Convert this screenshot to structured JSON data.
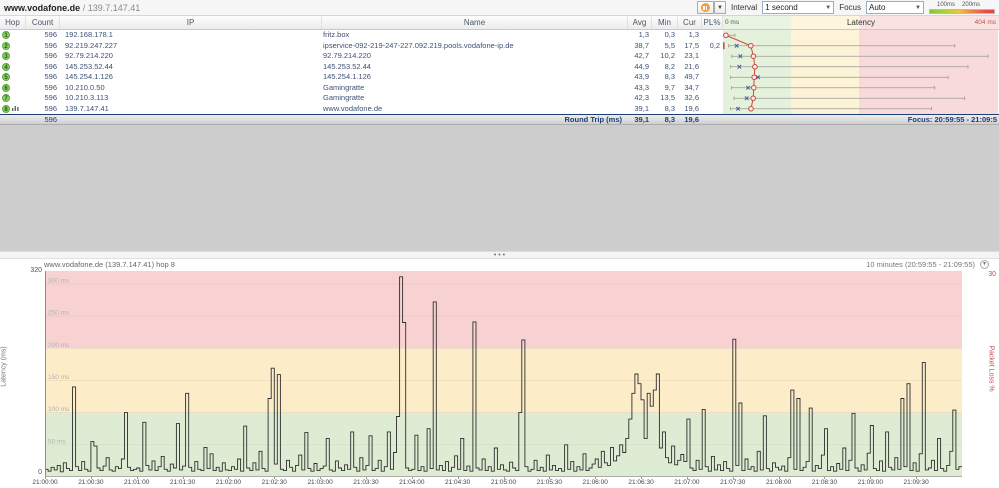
{
  "colors": {
    "pauseOrange": "#f0a03a",
    "zgreen": "#e4f1db",
    "zyellow": "#fdf3d6",
    "zred": "#f9dada",
    "zgreenT": "#eaf4e3",
    "zyellowT": "#fdf5de",
    "zredT": "#f9e2e2",
    "cgreen": "#ddecd2",
    "cyellow": "#fcecc8",
    "cred": "#f8d2d2",
    "hopBg": "#8bcf68",
    "hopBorder": "#5fa83c",
    "plRed": "#c0504d",
    "whisker": "#9a9a9a",
    "avgMarker": "#cb4a3d",
    "curMarker": "#3c55a5",
    "seriesLine": "#2f2f2f"
  },
  "toolbar": {
    "target_host": "www.vodafone.de",
    "target_sep": " / ",
    "target_ip": "139.7.147.41",
    "interval_label": "Interval",
    "interval_value": "1 second",
    "focus_label": "Focus",
    "focus_value": "Auto",
    "scale_label_1": "100ms",
    "scale_label_2": "200ms"
  },
  "trace": {
    "columns": {
      "hop": "Hop",
      "count": "Count",
      "ip": "IP",
      "name": "Name",
      "avg": "Avg",
      "min": "Min",
      "cur": "Cur",
      "pl": "PL%"
    },
    "latency_header": {
      "zero": "0 ms",
      "title": "Latency",
      "max": "404 ms"
    },
    "latency_scale_max": 404,
    "hops": [
      {
        "hop": "1",
        "count": "596",
        "ip": "192.168.178.1",
        "name": "fritz.box",
        "avg": "1,3",
        "min": "0,3",
        "cur": "1,3",
        "pl": "",
        "avg_v": 1.3,
        "min_v": 0.3,
        "cur_v": 1.3,
        "max_v": 15,
        "graphed": false
      },
      {
        "hop": "2",
        "count": "596",
        "ip": "92.219.247.227",
        "name": "ipservice-092-219-247-227.092.219.pools.vodafone-ip.de",
        "avg": "38,7",
        "min": "5,5",
        "cur": "17,5",
        "pl": "0,2",
        "avg_v": 38.7,
        "min_v": 5.5,
        "cur_v": 17.5,
        "max_v": 345,
        "graphed": false
      },
      {
        "hop": "3",
        "count": "596",
        "ip": "92.79.214.220",
        "name": "92.79.214.220",
        "avg": "42,7",
        "min": "10,2",
        "cur": "23,1",
        "pl": "",
        "avg_v": 42.7,
        "min_v": 10.2,
        "cur_v": 23.1,
        "max_v": 395,
        "graphed": false
      },
      {
        "hop": "4",
        "count": "596",
        "ip": "145.253.52.44",
        "name": "145.253.52.44",
        "avg": "44,9",
        "min": "8,2",
        "cur": "21,6",
        "pl": "",
        "avg_v": 44.9,
        "min_v": 8.2,
        "cur_v": 21.6,
        "max_v": 365,
        "graphed": false
      },
      {
        "hop": "5",
        "count": "596",
        "ip": "145.254.1.126",
        "name": "145.254.1.126",
        "avg": "43,9",
        "min": "8,3",
        "cur": "49,7",
        "pl": "",
        "avg_v": 43.9,
        "min_v": 8.3,
        "cur_v": 49.7,
        "max_v": 335,
        "graphed": false
      },
      {
        "hop": "6",
        "count": "596",
        "ip": "10.210.0.50",
        "name": "Gamingratte",
        "avg": "43,3",
        "min": "9,7",
        "cur": "34,7",
        "pl": "",
        "avg_v": 43.3,
        "min_v": 9.7,
        "cur_v": 34.7,
        "max_v": 315,
        "graphed": false
      },
      {
        "hop": "7",
        "count": "596",
        "ip": "10.210.3.113",
        "name": "Gamingratte",
        "avg": "42,3",
        "min": "13,5",
        "cur": "32,6",
        "pl": "",
        "avg_v": 42.3,
        "min_v": 13.5,
        "cur_v": 32.6,
        "max_v": 360,
        "graphed": false
      },
      {
        "hop": "8",
        "count": "596",
        "ip": "139.7.147.41",
        "name": "www.vodafone.de",
        "avg": "39,1",
        "min": "8,3",
        "cur": "19,6",
        "pl": "",
        "avg_v": 39.1,
        "min_v": 8.3,
        "cur_v": 19.6,
        "max_v": 310,
        "graphed": true
      }
    ],
    "footer": {
      "count": "596",
      "label": "Round Trip (ms)",
      "avg": "39,1",
      "min": "8,3",
      "cur": "19,6",
      "focus": "Focus: 20:59:55 - 21:09:5"
    }
  },
  "splitter": {
    "dots": "• • •"
  },
  "chart_data": {
    "type": "line",
    "title": "www.vodafone.de (139.7.147.41) hop 8",
    "range_label": "10 minutes (20:59:55 - 21:09:55)",
    "ylabel": "Latency (ms)",
    "y2label": "Packet Loss %",
    "ylim": [
      0,
      320
    ],
    "y2lim": [
      0,
      30
    ],
    "y_max_label": "320",
    "y_min_label": "0",
    "y2_max_label": "30",
    "zones_ms": [
      {
        "from": 0,
        "to": 100,
        "band": "green"
      },
      {
        "from": 100,
        "to": 200,
        "band": "yellow"
      },
      {
        "from": 200,
        "to": 320,
        "band": "red"
      }
    ],
    "grid_step_ms": 50,
    "grid_labels": [
      "300 ms",
      "250 ms",
      "200 ms",
      "150 ms",
      "100 ms",
      "50 ms"
    ],
    "x_start": "21:00:00",
    "dt_seconds": 2,
    "total_seconds": 600,
    "x_ticks": [
      "21:00:00",
      "21:00:30",
      "21:01:00",
      "21:01:30",
      "21:02:00",
      "21:02:30",
      "21:03:00",
      "21:03:30",
      "21:04:00",
      "21:04:30",
      "21:05:00",
      "21:05:30",
      "21:06:00",
      "21:06:30",
      "21:07:00",
      "21:07:30",
      "21:08:00",
      "21:08:30",
      "21:09:00",
      "21:09:30"
    ],
    "values": [
      12,
      9,
      15,
      11,
      18,
      8,
      22,
      13,
      10,
      140,
      16,
      10,
      24,
      12,
      9,
      55,
      48,
      14,
      10,
      17,
      30,
      11,
      9,
      16,
      13,
      28,
      100,
      15,
      10,
      12,
      14,
      9,
      85,
      18,
      11,
      25,
      10,
      16,
      32,
      12,
      9,
      20,
      14,
      83,
      11,
      17,
      130,
      15,
      9,
      24,
      12,
      10,
      46,
      13,
      36,
      10,
      15,
      9,
      22,
      11,
      10,
      16,
      12,
      28,
      9,
      79,
      14,
      10,
      22,
      11,
      40,
      13,
      9,
      122,
      169,
      20,
      159,
      12,
      10,
      26,
      15,
      9,
      18,
      34,
      11,
      69,
      13,
      9,
      21,
      10,
      13,
      17,
      60,
      11,
      9,
      25,
      14,
      10,
      19,
      12,
      70,
      15,
      9,
      30,
      11,
      18,
      64,
      10,
      13,
      26,
      9,
      16,
      70,
      12,
      38,
      94,
      311,
      240,
      14,
      10,
      12,
      65,
      10,
      16,
      9,
      75,
      13,
      272,
      11,
      18,
      10,
      24,
      9,
      15,
      33,
      12,
      60,
      10,
      17,
      9,
      241,
      14,
      11,
      28,
      10,
      16,
      9,
      45,
      12,
      19,
      11,
      9,
      23,
      14,
      10,
      100,
      213,
      16,
      9,
      12,
      26,
      10,
      15,
      9,
      34,
      11,
      18,
      10,
      13,
      9,
      50,
      12,
      24,
      9,
      16,
      11,
      36,
      10,
      14,
      20,
      28,
      15,
      40,
      22,
      18,
      46,
      25,
      33,
      50,
      38,
      60,
      90,
      130,
      160,
      145,
      120,
      60,
      130,
      110,
      135,
      160,
      45,
      70,
      30,
      22,
      48,
      19,
      26,
      35,
      24,
      90,
      14,
      10,
      26,
      12,
      105,
      16,
      9,
      32,
      11,
      19,
      10,
      24,
      13,
      9,
      214,
      18,
      115,
      10,
      28,
      12,
      16,
      9,
      40,
      11,
      95,
      13,
      9,
      22,
      15,
      11,
      17,
      9,
      30,
      135,
      12,
      122,
      10,
      15,
      24,
      107,
      9,
      18,
      13,
      34,
      75,
      10,
      16,
      9,
      21,
      12,
      45,
      10,
      26,
      99,
      14,
      9,
      19,
      11,
      37,
      80,
      13,
      10,
      25,
      9,
      70,
      15,
      11,
      30,
      12,
      122,
      16,
      145,
      10,
      22,
      9,
      36,
      178,
      11,
      14,
      26,
      10,
      60,
      13,
      9,
      18,
      40,
      104,
      12,
      16
    ]
  }
}
